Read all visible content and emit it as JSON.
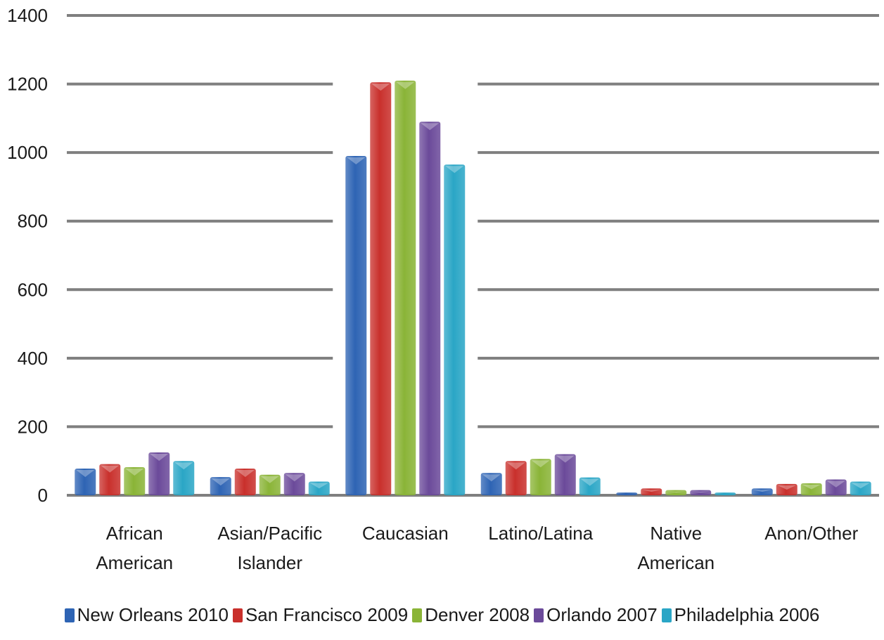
{
  "chart_data": {
    "type": "bar",
    "title": "",
    "xlabel": "",
    "ylabel": "",
    "ylim": [
      0,
      1400
    ],
    "yticks": [
      "0",
      "200",
      "400",
      "600",
      "800",
      "1000",
      "1200",
      "1400"
    ],
    "grid": true,
    "legend_position": "bottom",
    "categories": [
      [
        "African",
        "American"
      ],
      [
        "Asian/Pacific",
        "Islander"
      ],
      [
        "Caucasian"
      ],
      [
        "Latino/Latina"
      ],
      [
        "Native",
        "American"
      ],
      [
        "Anon/Other"
      ]
    ],
    "series": [
      {
        "name": "New Orleans 2010",
        "color": "#2e64b4",
        "values": [
          78,
          53,
          990,
          65,
          8,
          20
        ]
      },
      {
        "name": "San Francisco 2009",
        "color": "#c9302c",
        "values": [
          91,
          78,
          1205,
          100,
          20,
          33
        ]
      },
      {
        "name": "Denver 2008",
        "color": "#8ab437",
        "values": [
          82,
          60,
          1210,
          106,
          15,
          35
        ]
      },
      {
        "name": "Orlando 2007",
        "color": "#6b4a9a",
        "values": [
          125,
          65,
          1090,
          120,
          15,
          46
        ]
      },
      {
        "name": "Philadelphia 2006",
        "color": "#2aa6c6",
        "values": [
          100,
          40,
          965,
          52,
          8,
          40
        ]
      }
    ]
  }
}
